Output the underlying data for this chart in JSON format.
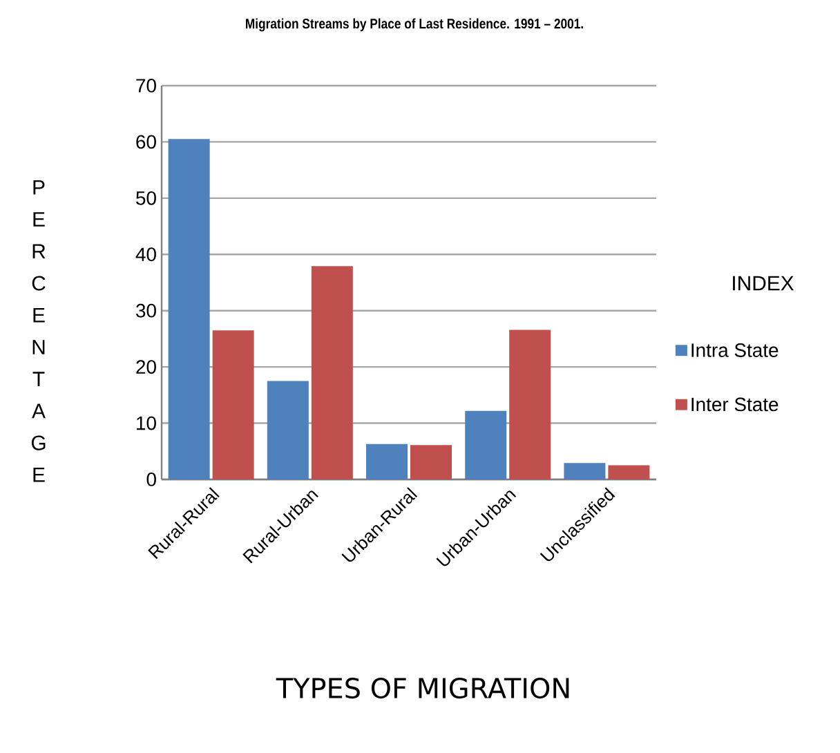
{
  "chart_data": {
    "type": "bar",
    "title": "Migration Streams by Place of Last Residence. 1991 – 2001.",
    "xlabel": "TYPES OF MIGRATION",
    "ylabel": "P E R C E N T A G E",
    "legend_title": "INDEX",
    "categories": [
      "Rural-Rural",
      "Rural-Urban",
      "Urban-Rural",
      "Urban-Urban",
      "Unclassified"
    ],
    "series": [
      {
        "name": "Intra State",
        "color": "#4f81bd",
        "values": [
          60.5,
          17.5,
          6.3,
          12.2,
          2.9
        ]
      },
      {
        "name": "Inter State",
        "color": "#c0504d",
        "values": [
          26.5,
          37.9,
          6.1,
          26.6,
          2.5
        ]
      }
    ],
    "ylim": [
      0,
      70
    ],
    "yticks": [
      0,
      10,
      20,
      30,
      40,
      50,
      60,
      70
    ],
    "grid": "y",
    "legend": "right"
  }
}
